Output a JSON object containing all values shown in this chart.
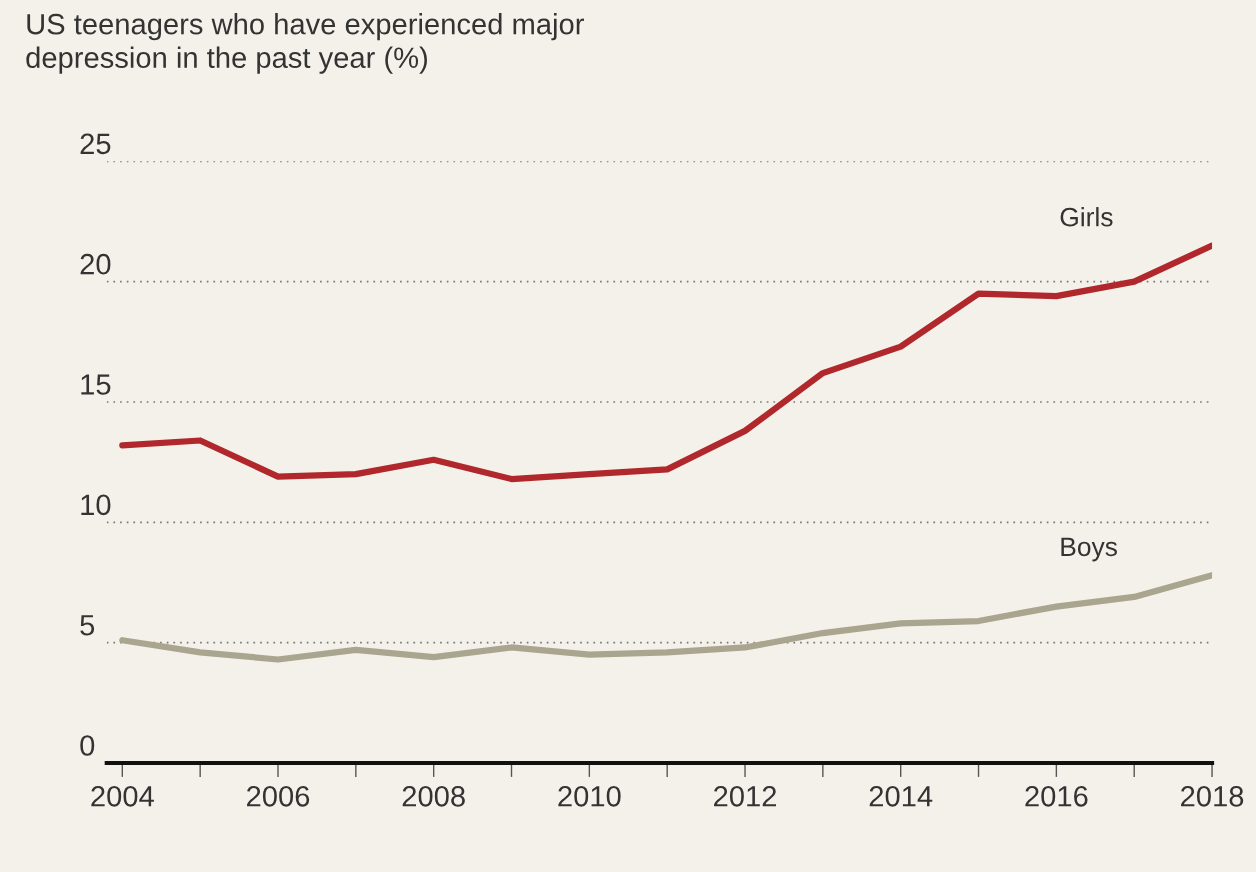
{
  "chart_data": {
    "type": "line",
    "title": "US teenagers who have experienced major\ndepression in the past year (%)",
    "x": [
      2004,
      2005,
      2006,
      2007,
      2008,
      2009,
      2010,
      2011,
      2012,
      2013,
      2014,
      2015,
      2016,
      2017,
      2018
    ],
    "series": [
      {
        "name": "Girls",
        "color": "#b0282c",
        "values": [
          13.2,
          13.4,
          11.9,
          12.0,
          12.6,
          11.8,
          12.0,
          12.2,
          13.8,
          16.2,
          17.3,
          19.5,
          19.4,
          20.0,
          21.5
        ]
      },
      {
        "name": "Boys",
        "color": "#a9a58f",
        "values": [
          5.1,
          4.6,
          4.3,
          4.7,
          4.4,
          4.8,
          4.5,
          4.6,
          4.8,
          5.4,
          5.8,
          5.9,
          6.5,
          6.9,
          7.8
        ]
      }
    ],
    "xlim": [
      2003.8,
      2018
    ],
    "xticks": [
      2004,
      {
        "value": 2005,
        "label": null
      },
      2006,
      {
        "value": 2007,
        "label": null
      },
      2008,
      {
        "value": 2009,
        "label": null
      },
      2010,
      {
        "value": 2011,
        "label": null
      },
      2012,
      {
        "value": 2013,
        "label": null
      },
      2014,
      {
        "value": 2015,
        "label": null
      },
      2016,
      {
        "value": 2017,
        "label": null
      },
      2018
    ],
    "ylim": [
      0,
      25
    ],
    "yticks": [
      0,
      5,
      10,
      15,
      20,
      25
    ],
    "grid": "y",
    "legend": false,
    "line_style": "solid",
    "marker": "none"
  }
}
